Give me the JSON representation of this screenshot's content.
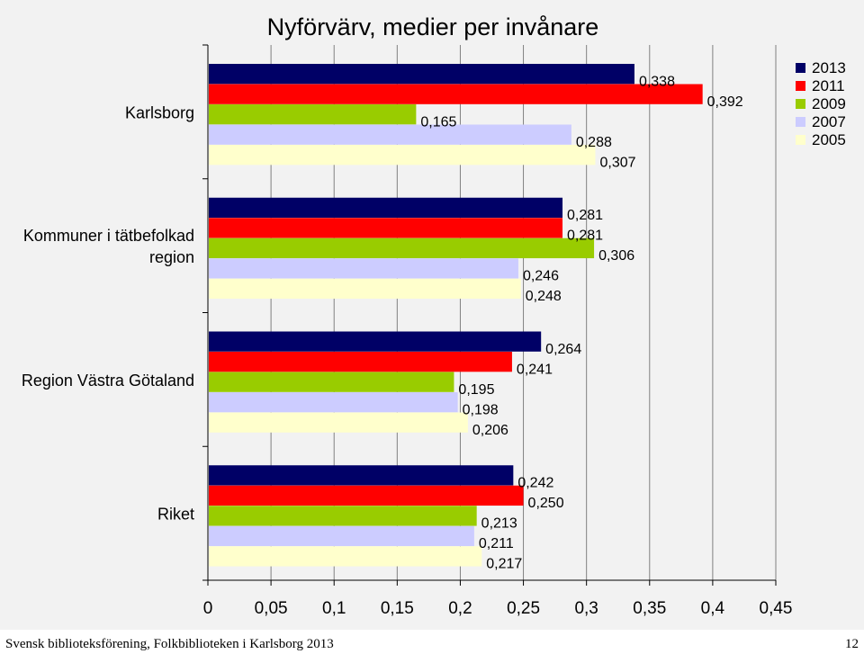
{
  "chart_data": {
    "type": "bar",
    "orientation": "horizontal",
    "title": "Nyförvärv, medier per invånare",
    "categories": [
      "Karlsborg",
      "Kommuner i tätbefolkad region",
      "Region Västra Götaland",
      "Riket"
    ],
    "series": [
      {
        "name": "2013",
        "color": "#000066",
        "values": [
          0.338,
          0.281,
          0.264,
          0.242
        ],
        "labels": [
          "0,338",
          "0,281",
          "0,264",
          "0,242"
        ]
      },
      {
        "name": "2011",
        "color": "#ff0000",
        "values": [
          0.392,
          0.281,
          0.241,
          0.25
        ],
        "labels": [
          "0,392",
          "0,281",
          "0,241",
          "0,250"
        ]
      },
      {
        "name": "2009",
        "color": "#99cc00",
        "values": [
          0.165,
          0.306,
          0.195,
          0.213
        ],
        "labels": [
          "0,165",
          "0,306",
          "0,195",
          "0,213"
        ]
      },
      {
        "name": "2007",
        "color": "#ccccff",
        "values": [
          0.288,
          0.246,
          0.198,
          0.211
        ],
        "labels": [
          "0,288",
          "0,246",
          "0,198",
          "0,211"
        ]
      },
      {
        "name": "2005",
        "color": "#ffffcc",
        "values": [
          0.307,
          0.248,
          0.206,
          0.217
        ],
        "labels": [
          "0,307",
          "0,248",
          "0,206",
          "0,217"
        ]
      }
    ],
    "xlim": [
      0,
      0.45
    ],
    "x_ticks": [
      0,
      0.05,
      0.1,
      0.15,
      0.2,
      0.25,
      0.3,
      0.35,
      0.4,
      0.45
    ],
    "x_tick_labels": [
      "0",
      "0,05",
      "0,1",
      "0,15",
      "0,2",
      "0,25",
      "0,3",
      "0,35",
      "0,4",
      "0,45"
    ],
    "grid": "vertical",
    "legend_position": "top-right"
  },
  "footer": {
    "left": "Svensk biblioteksförening, Folkbiblioteken i Karlsborg 2013",
    "right": "12"
  }
}
